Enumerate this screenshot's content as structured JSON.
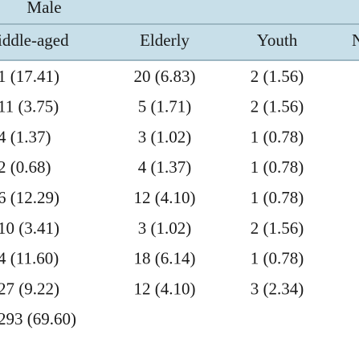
{
  "table": {
    "group": "Male",
    "columns": [
      "iddle-aged",
      "Elderly",
      "Youth",
      "N"
    ],
    "rows": [
      [
        "1 (17.41)",
        "20 (6.83)",
        "2 (1.56)"
      ],
      [
        "11 (3.75)",
        "5 (1.71)",
        "2 (1.56)"
      ],
      [
        "4 (1.37)",
        "3 (1.02)",
        "1 (0.78)"
      ],
      [
        "2 (0.68)",
        "4 (1.37)",
        "1 (0.78)"
      ],
      [
        "6 (12.29)",
        "12 (4.10)",
        "1 (0.78)"
      ],
      [
        "10 (3.41)",
        "3 (1.02)",
        "2 (1.56)"
      ],
      [
        "4 (11.60)",
        "18 (6.14)",
        "1 (0.78)"
      ],
      [
        "27 (9.22)",
        "12 (4.10)",
        "3 (2.34)"
      ],
      [
        "293 (69.60)"
      ]
    ]
  }
}
